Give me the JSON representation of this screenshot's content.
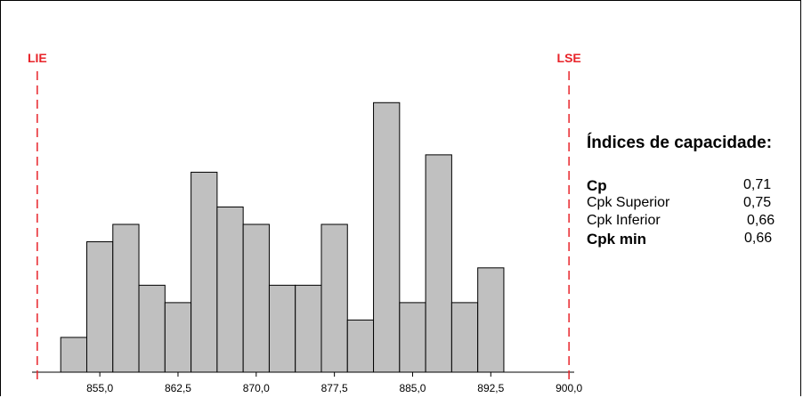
{
  "chart_data": {
    "type": "bar",
    "subtype": "histogram",
    "bins": [
      {
        "x0": 851.25,
        "x1": 853.75,
        "count": 2
      },
      {
        "x0": 853.75,
        "x1": 856.25,
        "count": 7.5
      },
      {
        "x0": 856.25,
        "x1": 858.75,
        "count": 8.5
      },
      {
        "x0": 858.75,
        "x1": 861.25,
        "count": 5
      },
      {
        "x0": 861.25,
        "x1": 863.75,
        "count": 4
      },
      {
        "x0": 863.75,
        "x1": 866.25,
        "count": 11.5
      },
      {
        "x0": 866.25,
        "x1": 868.75,
        "count": 9.5
      },
      {
        "x0": 868.75,
        "x1": 871.25,
        "count": 8.5
      },
      {
        "x0": 871.25,
        "x1": 873.75,
        "count": 5
      },
      {
        "x0": 873.75,
        "x1": 876.25,
        "count": 5
      },
      {
        "x0": 876.25,
        "x1": 878.75,
        "count": 8.5
      },
      {
        "x0": 878.75,
        "x1": 881.25,
        "count": 3
      },
      {
        "x0": 881.25,
        "x1": 883.75,
        "count": 15.5
      },
      {
        "x0": 883.75,
        "x1": 886.25,
        "count": 4
      },
      {
        "x0": 886.25,
        "x1": 888.75,
        "count": 12.5
      },
      {
        "x0": 888.75,
        "x1": 891.25,
        "count": 4
      },
      {
        "x0": 891.25,
        "x1": 893.75,
        "count": 6
      }
    ],
    "xlim": [
      848.5,
      900.5
    ],
    "ylim": [
      0,
      17
    ],
    "x_ticks": [
      855,
      862.5,
      870,
      877.5,
      885,
      892.5,
      900
    ],
    "x_tick_labels": [
      "855,0",
      "862,5",
      "870,0",
      "877,5",
      "885,0",
      "892,5",
      "900,0"
    ],
    "spec_limits": [
      {
        "label": "LIE",
        "value": 849.0
      },
      {
        "label": "LSE",
        "value": 900.0
      }
    ],
    "colors": {
      "bar_fill": "#c0c0c0",
      "bar_stroke": "#000000",
      "spec_line": "#e8242a"
    },
    "grid": false
  },
  "panel": {
    "title": "Índices de capacidade:",
    "rows": [
      {
        "label": "Cp",
        "value": "0,71",
        "bold": true
      },
      {
        "label": "Cpk Superior",
        "value": "0,75",
        "bold": false
      },
      {
        "label": "Cpk Inferior",
        "value": "0,66",
        "bold": false
      },
      {
        "label": "Cpk min",
        "value": "0,66",
        "bold": true
      }
    ]
  }
}
